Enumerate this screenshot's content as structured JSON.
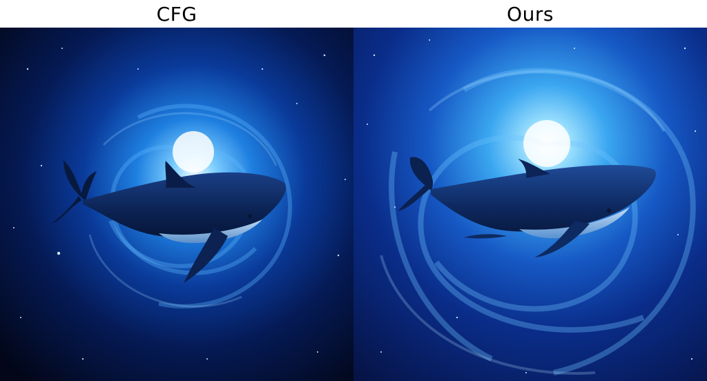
{
  "panels": [
    {
      "title": "CFG"
    },
    {
      "title": "Ours"
    }
  ],
  "colors": {
    "space": "#02081e",
    "glow": "#e9f7ff",
    "swirl": "#2f8de6",
    "whale": "#0d2353",
    "belly": "#b8d6f2"
  }
}
